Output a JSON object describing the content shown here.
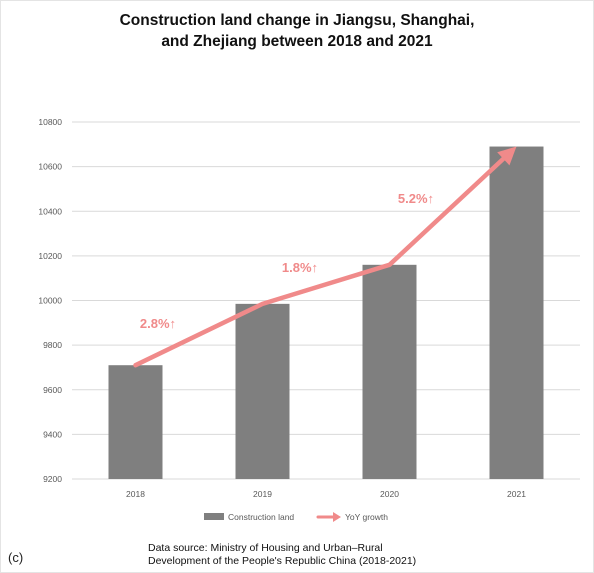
{
  "chart_data": {
    "type": "bar",
    "title": [
      "Construction land change in Jiangsu, Shanghai,",
      "and Zhejiang between 2018 and 2021"
    ],
    "categories": [
      "2018",
      "2019",
      "2020",
      "2021"
    ],
    "series": [
      {
        "name": "Construction land",
        "type": "bar",
        "values": [
          9710,
          9985,
          10160,
          10690
        ],
        "color": "#7f7f7f"
      },
      {
        "name": "YoY growth",
        "type": "arrow-line",
        "values": [
          9710,
          9985,
          10160,
          10690
        ],
        "color": "#f08a8a"
      }
    ],
    "annotations": [
      "2.8%↑",
      "1.8%↑",
      "5.2%↑"
    ],
    "ylim": [
      9200,
      10800
    ],
    "yticks": [
      "9200",
      "9400",
      "9600",
      "9800",
      "10000",
      "10200",
      "10400",
      "10600",
      "10800"
    ],
    "grid": true,
    "legend": "bottom"
  },
  "panel_label": "(c)",
  "source": [
    "Data source: Ministry of Housing and Urban–Rural",
    "Development of the People's Republic China (2018-2021)"
  ]
}
